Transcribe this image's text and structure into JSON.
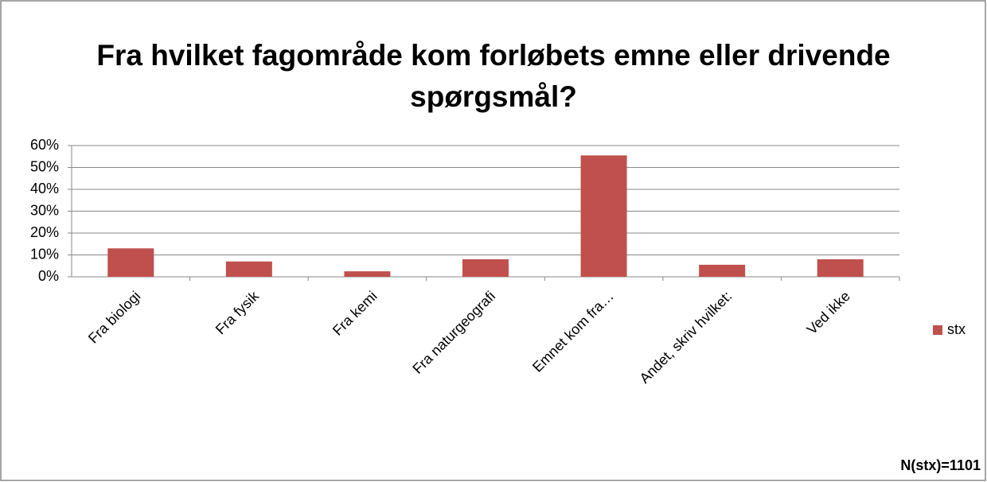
{
  "chart_data": {
    "type": "bar",
    "title": "Fra hvilket fagområde kom forløbets emne eller drivende spørgsmål?",
    "categories": [
      "Fra biologi",
      "Fra fysik",
      "Fra kemi",
      "Fra naturgeografi",
      "Emnet kom fra…",
      "Andet, skriv hvilket:",
      "Ved ikke"
    ],
    "series": [
      {
        "name": "stx",
        "color": "#c0504d",
        "values": [
          13,
          7,
          2.5,
          8,
          55.5,
          5.5,
          8
        ]
      }
    ],
    "ylim": [
      0,
      60
    ],
    "yticks": [
      {
        "value": 0,
        "label": "0%"
      },
      {
        "value": 10,
        "label": "10%"
      },
      {
        "value": 20,
        "label": "20%"
      },
      {
        "value": 30,
        "label": "30%"
      },
      {
        "value": 40,
        "label": "40%"
      },
      {
        "value": 50,
        "label": "50%"
      },
      {
        "value": 60,
        "label": "60%"
      }
    ],
    "grid": true,
    "legend": "right",
    "annotation": "N(stx)=1101"
  }
}
